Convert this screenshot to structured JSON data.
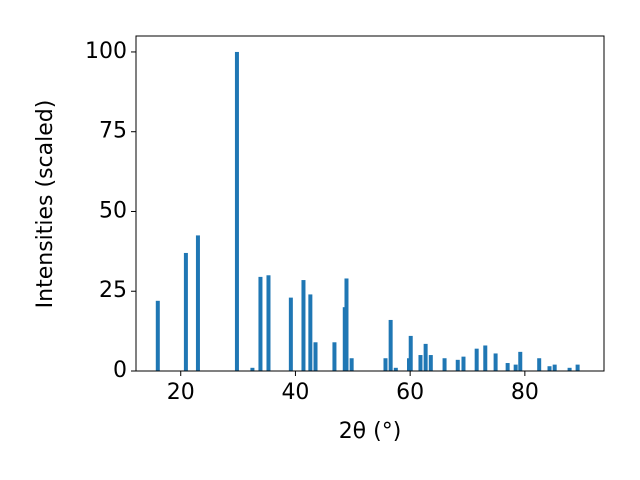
{
  "chart_data": {
    "type": "bar",
    "x": [
      16.0,
      20.9,
      23.0,
      29.8,
      32.5,
      33.9,
      35.3,
      39.2,
      41.4,
      42.6,
      43.5,
      46.8,
      48.6,
      48.9,
      49.8,
      55.7,
      56.6,
      57.5,
      59.8,
      60.1,
      61.8,
      62.7,
      63.6,
      66.0,
      68.3,
      69.3,
      71.6,
      73.1,
      74.9,
      77.0,
      78.4,
      79.2,
      82.5,
      84.3,
      85.2,
      87.8,
      89.2
    ],
    "values": [
      22,
      37,
      42.5,
      100,
      1,
      29.5,
      30,
      23,
      28.5,
      24,
      9,
      9,
      20,
      29,
      4,
      4,
      16,
      1,
      4,
      11,
      5,
      8.5,
      5,
      4,
      3.5,
      4.5,
      7,
      8,
      5.5,
      2.5,
      2,
      6,
      4,
      1.5,
      2,
      1,
      2
    ],
    "color": "#1f77b4",
    "xlabel": "2θ (°)",
    "ylabel": "Intensities (scaled)",
    "xlim": [
      12.2,
      93.8
    ],
    "xticks": [
      20,
      40,
      60,
      80
    ],
    "ylim": [
      0,
      105
    ],
    "yticks": [
      0,
      25,
      50,
      75,
      100
    ],
    "grid": false
  }
}
